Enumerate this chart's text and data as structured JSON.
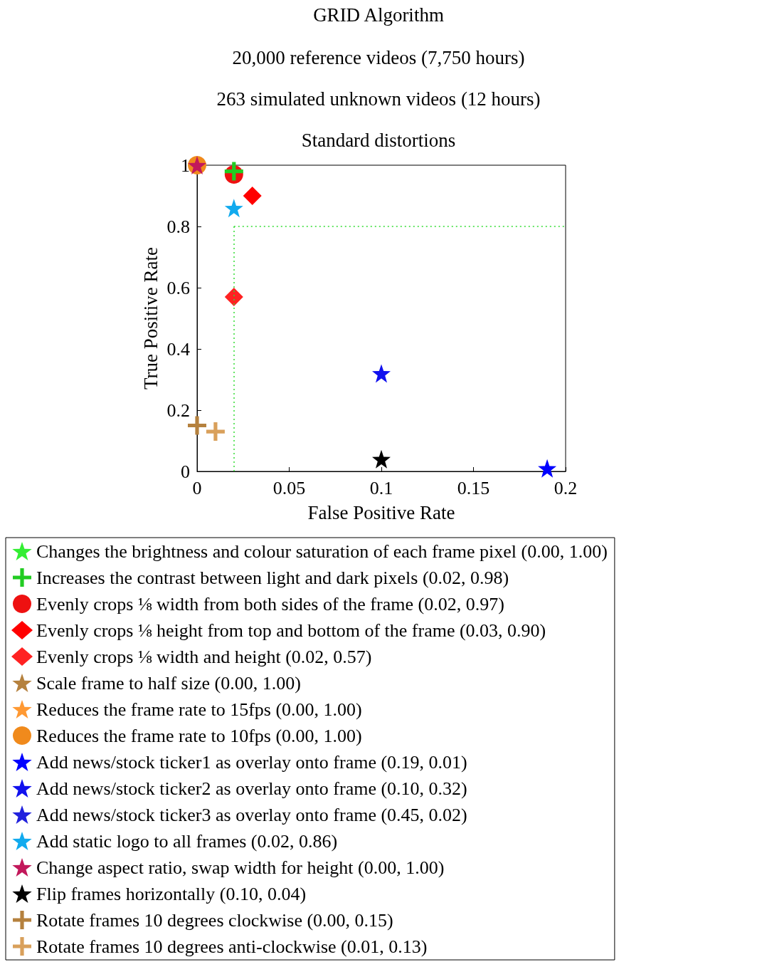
{
  "chart_data": {
    "type": "scatter",
    "title": "GRID Algorithm",
    "subtitle": "20,000 reference videos (7,750 hours)\n263 simulated unknown videos (12 hours)\nStandard distortions",
    "xlabel": "False Positive Rate",
    "ylabel": "True Positive Rate",
    "xlim": [
      0,
      0.2
    ],
    "ylim": [
      0,
      1
    ],
    "xticks": [
      0,
      0.05,
      0.1,
      0.15,
      0.2
    ],
    "yticks": [
      0,
      0.2,
      0.4,
      0.6,
      0.8,
      1
    ],
    "grid": false,
    "legend": "bottom",
    "ref_lines": [
      {
        "axis": "x",
        "value": 0.02,
        "color": "#33dd33",
        "line_style": "dotted"
      },
      {
        "axis": "y",
        "value": 0.8,
        "color": "#33dd33",
        "line_style": "dotted"
      }
    ],
    "series": [
      {
        "name": "Changes the brightness and colour saturation of each frame pixel (0.00, 1.00)",
        "color": "#33ee33",
        "marker": "star",
        "x": [
          null
        ],
        "values": [
          null
        ]
      },
      {
        "name": "Increases the contrast between light and dark pixels (0.02, 0.98)",
        "color": "#22cc22",
        "marker": "cross",
        "x": [
          0.02
        ],
        "values": [
          0.98
        ]
      },
      {
        "name": "Evenly crops ⅛ width from both sides of the frame (0.02, 0.97)",
        "color": "#ee1111",
        "marker": "circle",
        "x": [
          0.02
        ],
        "values": [
          0.97
        ]
      },
      {
        "name": "Evenly crops ⅛ height from top and bottom of the frame (0.03, 0.90)",
        "color": "#ff0000",
        "marker": "diamond",
        "x": [
          0.03
        ],
        "values": [
          0.9
        ]
      },
      {
        "name": "Evenly crops ⅛ width and height (0.02, 0.57)",
        "color": "#ff2222",
        "marker": "diamond",
        "x": [
          0.02
        ],
        "values": [
          0.57
        ]
      },
      {
        "name": "Scale frame to half size (0.00, 1.00)",
        "color": "#b5813e",
        "marker": "star",
        "x": [
          null
        ],
        "values": [
          null
        ]
      },
      {
        "name": "Reduces the frame rate to 15fps (0.00, 1.00)",
        "color": "#ff9933",
        "marker": "star",
        "x": [
          null
        ],
        "values": [
          null
        ]
      },
      {
        "name": "Reduces the frame rate to 10fps (0.00, 1.00)",
        "color": "#f08a1c",
        "marker": "circle",
        "x": [
          0.0
        ],
        "values": [
          1.0
        ]
      },
      {
        "name": "Add news/stock ticker1 as overlay onto frame (0.19, 0.01)",
        "color": "#0000ff",
        "marker": "star",
        "x": [
          0.19
        ],
        "values": [
          0.01
        ]
      },
      {
        "name": "Add news/stock ticker2 as overlay onto frame (0.10, 0.32)",
        "color": "#1111ee",
        "marker": "star",
        "x": [
          0.1
        ],
        "values": [
          0.32
        ]
      },
      {
        "name": "Add news/stock ticker3 as overlay onto frame (0.45, 0.02)",
        "color": "#2222dd",
        "marker": "star",
        "x": [
          null
        ],
        "values": [
          null
        ]
      },
      {
        "name": "Add static logo to all frames (0.02, 0.86)",
        "color": "#11aaee",
        "marker": "star",
        "x": [
          0.02
        ],
        "values": [
          0.86
        ]
      },
      {
        "name": "Change aspect ratio, swap width for height (0.00, 1.00)",
        "color": "#c2185b",
        "marker": "star",
        "x": [
          0.0
        ],
        "values": [
          1.0
        ]
      },
      {
        "name": "Flip frames horizontally (0.10, 0.04)",
        "color": "#000000",
        "marker": "star",
        "x": [
          0.1
        ],
        "values": [
          0.04
        ]
      },
      {
        "name": "Rotate frames 10 degrees clockwise (0.00, 0.15)",
        "color": "#b5813e",
        "marker": "cross",
        "x": [
          0.0
        ],
        "values": [
          0.15
        ]
      },
      {
        "name": "Rotate frames 10 degrees anti-clockwise (0.01, 0.13)",
        "color": "#d9a05b",
        "marker": "cross",
        "x": [
          0.01
        ],
        "values": [
          0.13
        ]
      }
    ]
  }
}
